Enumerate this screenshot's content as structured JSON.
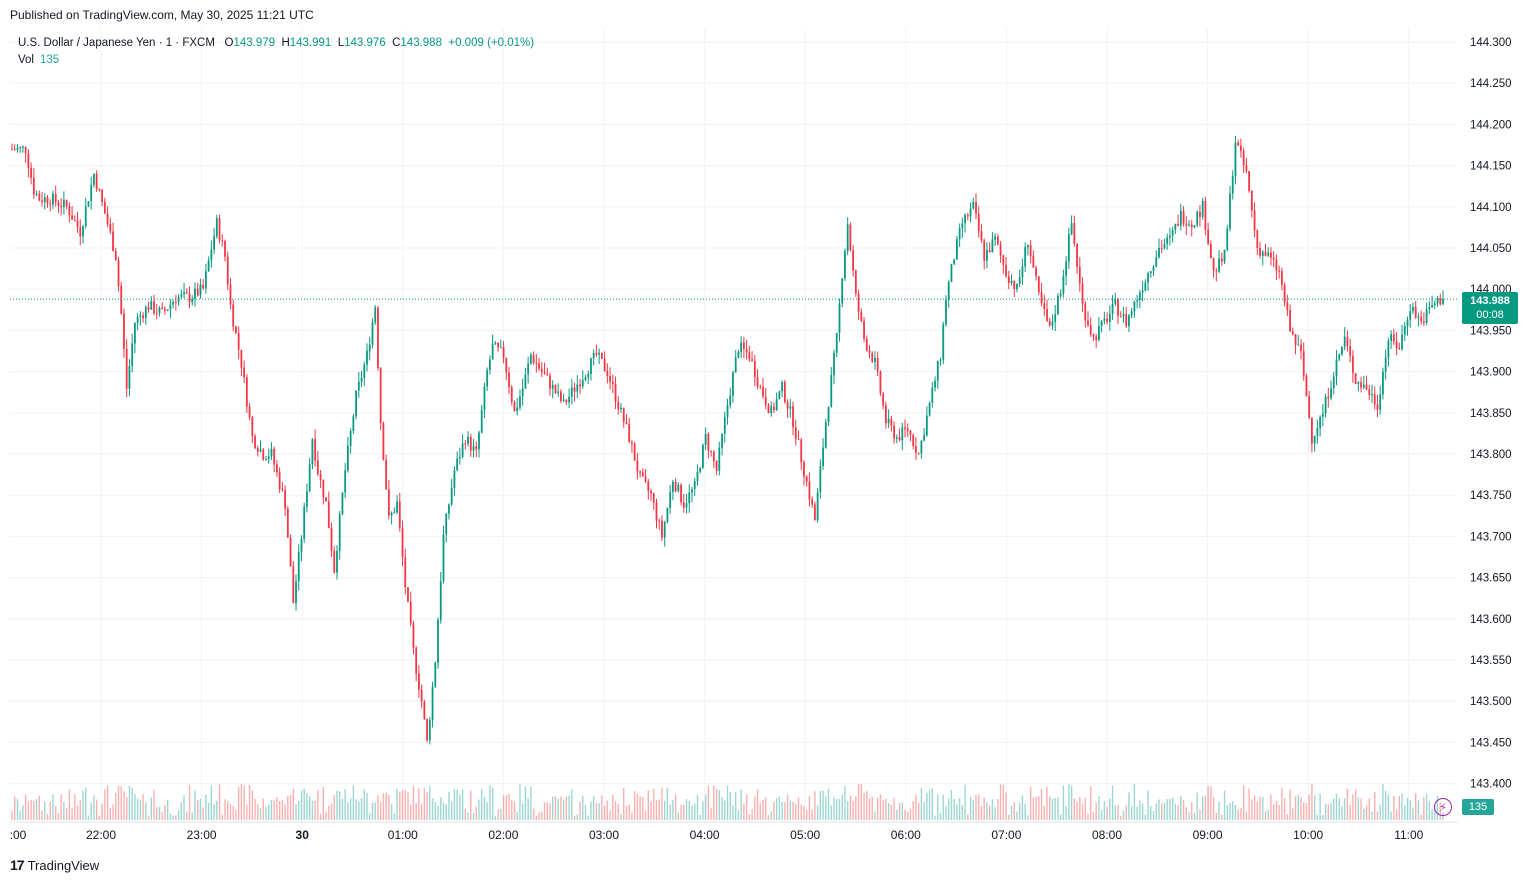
{
  "header": {
    "published": "Published on TradingView.com, May 30, 2025 11:21 UTC"
  },
  "legend": {
    "symbol": "U.S. Dollar / Japanese Yen",
    "interval": "1",
    "exchange": "FXCM",
    "o_label": "O",
    "o_value": "143.979",
    "h_label": "H",
    "h_value": "143.991",
    "l_label": "L",
    "l_value": "143.976",
    "c_label": "C",
    "c_value": "143.988",
    "change": "+0.009 (+0.01%)",
    "vol_label": "Vol",
    "vol_value": "135"
  },
  "price_tag": {
    "price": "143.988",
    "countdown": "00:08"
  },
  "vol_tag": "135",
  "footer": {
    "brand": "TradingView"
  },
  "colors": {
    "up": "#089981",
    "down": "#f23645",
    "vol_up": "#26a69a",
    "vol_down": "#ef5350",
    "grid": "#f0f3fa"
  },
  "chart_data": {
    "type": "candlestick",
    "y_ticks": [
      "144.300",
      "144.250",
      "144.200",
      "144.150",
      "144.100",
      "144.050",
      "144.000",
      "143.950",
      "143.900",
      "143.850",
      "143.800",
      "143.750",
      "143.700",
      "143.650",
      "143.600",
      "143.550",
      "143.500",
      "143.450",
      "143.400"
    ],
    "x_ticks": [
      ":00",
      "22:00",
      "23:00",
      "30",
      "01:00",
      "02:00",
      "03:00",
      "04:00",
      "05:00",
      "06:00",
      "07:00",
      "08:00",
      "09:00",
      "10:00",
      "11:00"
    ],
    "ylim": [
      143.37,
      144.33
    ],
    "last_price": 143.988,
    "interval_minutes": 1,
    "close_path": [
      [
        0,
        144.17
      ],
      [
        5,
        144.17
      ],
      [
        8,
        144.12
      ],
      [
        10,
        144.11
      ],
      [
        14,
        144.11
      ],
      [
        20,
        144.1
      ],
      [
        25,
        144.07
      ],
      [
        30,
        144.14
      ],
      [
        35,
        144.08
      ],
      [
        38,
        144.04
      ],
      [
        40,
        143.97
      ],
      [
        42,
        143.88
      ],
      [
        45,
        143.96
      ],
      [
        50,
        143.98
      ],
      [
        55,
        143.97
      ],
      [
        60,
        143.99
      ],
      [
        65,
        143.99
      ],
      [
        70,
        144.0
      ],
      [
        73,
        144.05
      ],
      [
        75,
        144.08
      ],
      [
        78,
        144.04
      ],
      [
        80,
        143.98
      ],
      [
        84,
        143.91
      ],
      [
        88,
        143.82
      ],
      [
        92,
        143.8
      ],
      [
        95,
        143.8
      ],
      [
        100,
        143.74
      ],
      [
        103,
        143.62
      ],
      [
        106,
        143.7
      ],
      [
        110,
        143.82
      ],
      [
        112,
        143.78
      ],
      [
        115,
        143.74
      ],
      [
        118,
        143.66
      ],
      [
        122,
        143.78
      ],
      [
        126,
        143.87
      ],
      [
        130,
        143.92
      ],
      [
        133,
        143.98
      ],
      [
        135,
        143.84
      ],
      [
        138,
        143.72
      ],
      [
        141,
        143.74
      ],
      [
        144,
        143.64
      ],
      [
        147,
        143.56
      ],
      [
        150,
        143.5
      ],
      [
        152,
        143.45
      ],
      [
        155,
        143.55
      ],
      [
        158,
        143.7
      ],
      [
        162,
        143.78
      ],
      [
        166,
        143.82
      ],
      [
        170,
        143.8
      ],
      [
        174,
        143.9
      ],
      [
        176,
        143.93
      ],
      [
        180,
        143.92
      ],
      [
        184,
        143.85
      ],
      [
        187,
        143.88
      ],
      [
        190,
        143.92
      ],
      [
        194,
        143.9
      ],
      [
        198,
        143.88
      ],
      [
        202,
        143.86
      ],
      [
        206,
        143.88
      ],
      [
        210,
        143.9
      ],
      [
        214,
        143.92
      ],
      [
        218,
        143.9
      ],
      [
        222,
        143.86
      ],
      [
        226,
        143.82
      ],
      [
        230,
        143.77
      ],
      [
        234,
        143.75
      ],
      [
        238,
        143.7
      ],
      [
        242,
        143.77
      ],
      [
        246,
        143.74
      ],
      [
        250,
        143.76
      ],
      [
        254,
        143.82
      ],
      [
        258,
        143.78
      ],
      [
        262,
        143.86
      ],
      [
        266,
        143.93
      ],
      [
        270,
        143.92
      ],
      [
        274,
        143.88
      ],
      [
        278,
        143.85
      ],
      [
        282,
        143.88
      ],
      [
        286,
        143.84
      ],
      [
        290,
        143.78
      ],
      [
        294,
        143.72
      ],
      [
        298,
        143.84
      ],
      [
        302,
        143.94
      ],
      [
        304,
        144.02
      ],
      [
        306,
        144.08
      ],
      [
        309,
        143.99
      ],
      [
        312,
        143.94
      ],
      [
        316,
        143.91
      ],
      [
        320,
        143.84
      ],
      [
        324,
        143.82
      ],
      [
        328,
        143.83
      ],
      [
        332,
        143.8
      ],
      [
        336,
        143.86
      ],
      [
        340,
        143.92
      ],
      [
        342,
        143.99
      ],
      [
        345,
        144.04
      ],
      [
        348,
        144.08
      ],
      [
        352,
        144.1
      ],
      [
        356,
        144.04
      ],
      [
        360,
        144.06
      ],
      [
        364,
        144.02
      ],
      [
        368,
        144.0
      ],
      [
        372,
        144.06
      ],
      [
        376,
        143.99
      ],
      [
        380,
        143.95
      ],
      [
        384,
        144.0
      ],
      [
        388,
        144.08
      ],
      [
        392,
        143.98
      ],
      [
        396,
        143.94
      ],
      [
        400,
        143.96
      ],
      [
        404,
        143.98
      ],
      [
        408,
        143.96
      ],
      [
        412,
        143.99
      ],
      [
        416,
        144.02
      ],
      [
        420,
        144.05
      ],
      [
        424,
        144.06
      ],
      [
        428,
        144.09
      ],
      [
        432,
        144.08
      ],
      [
        436,
        144.1
      ],
      [
        440,
        144.02
      ],
      [
        444,
        144.04
      ],
      [
        448,
        144.18
      ],
      [
        452,
        144.14
      ],
      [
        456,
        144.05
      ],
      [
        460,
        144.04
      ],
      [
        464,
        144.02
      ],
      [
        468,
        143.95
      ],
      [
        472,
        143.92
      ],
      [
        476,
        143.82
      ],
      [
        480,
        143.85
      ],
      [
        484,
        143.9
      ],
      [
        488,
        143.94
      ],
      [
        492,
        143.89
      ],
      [
        496,
        143.88
      ],
      [
        500,
        143.86
      ],
      [
        504,
        143.94
      ],
      [
        508,
        143.93
      ],
      [
        512,
        143.98
      ],
      [
        516,
        143.96
      ],
      [
        520,
        143.98
      ],
      [
        524,
        143.99
      ]
    ]
  }
}
